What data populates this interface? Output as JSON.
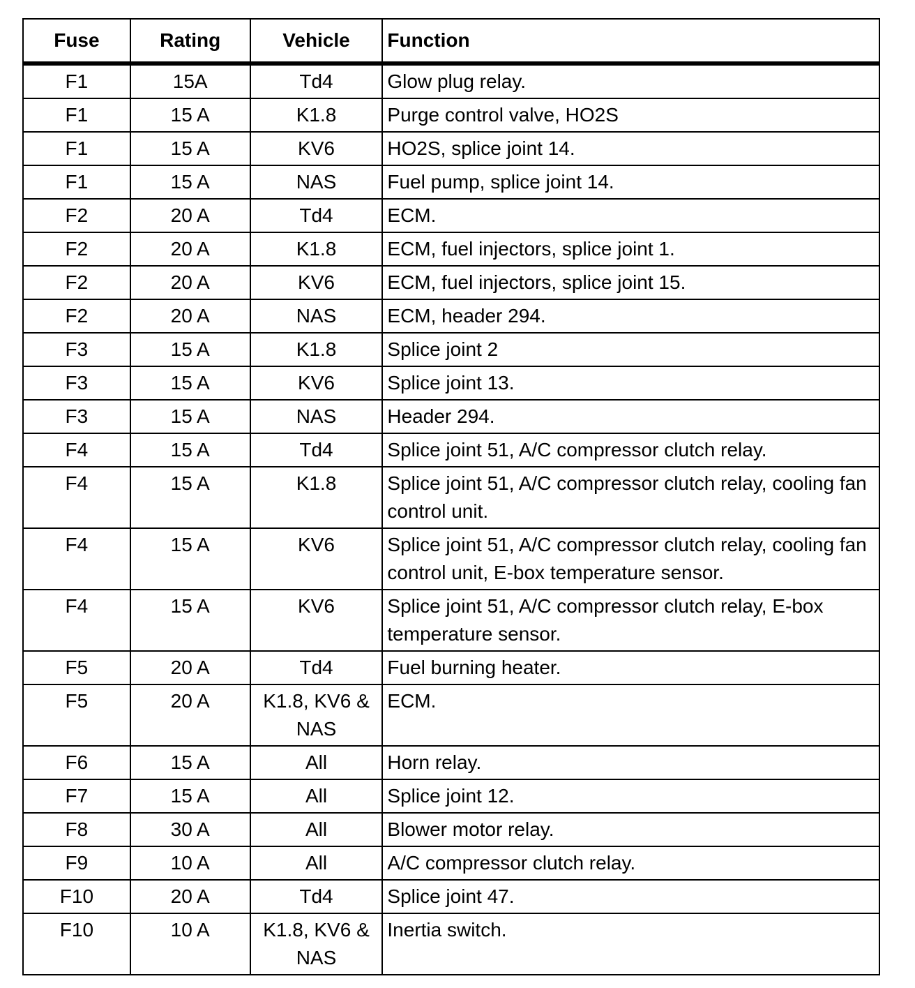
{
  "table": {
    "headers": [
      "Fuse",
      "Rating",
      "Vehicle",
      "Function"
    ],
    "rows": [
      [
        "F1",
        "15A",
        "Td4",
        "Glow plug relay."
      ],
      [
        "F1",
        "15 A",
        "K1.8",
        "Purge control valve, HO2S"
      ],
      [
        "F1",
        "15 A",
        "KV6",
        "HO2S, splice joint 14."
      ],
      [
        "F1",
        "15 A",
        "NAS",
        "Fuel pump, splice joint 14."
      ],
      [
        "F2",
        "20 A",
        "Td4",
        "ECM."
      ],
      [
        "F2",
        "20 A",
        "K1.8",
        "ECM, fuel injectors, splice joint 1."
      ],
      [
        "F2",
        "20 A",
        "KV6",
        "ECM, fuel injectors, splice joint 15."
      ],
      [
        "F2",
        "20 A",
        "NAS",
        "ECM, header 294."
      ],
      [
        "F3",
        "15 A",
        "K1.8",
        "Splice joint 2"
      ],
      [
        "F3",
        "15 A",
        "KV6",
        "Splice joint 13."
      ],
      [
        "F3",
        "15 A",
        "NAS",
        "Header 294."
      ],
      [
        "F4",
        "15 A",
        "Td4",
        "Splice joint 51, A/C compressor clutch relay."
      ],
      [
        "F4",
        "15 A",
        "K1.8",
        "Splice joint 51, A/C compressor clutch relay, cooling fan control unit."
      ],
      [
        "F4",
        "15 A",
        "KV6",
        "Splice joint 51, A/C compressor clutch relay, cooling fan control unit, E-box temperature sensor."
      ],
      [
        "F4",
        "15 A",
        "KV6",
        "Splice joint 51, A/C compressor clutch relay, E-box temperature sensor."
      ],
      [
        "F5",
        "20 A",
        "Td4",
        "Fuel burning heater."
      ],
      [
        "F5",
        "20 A",
        "K1.8, KV6 & NAS",
        "ECM."
      ],
      [
        "F6",
        "15 A",
        "All",
        "Horn relay."
      ],
      [
        "F7",
        "15 A",
        "All",
        "Splice joint 12."
      ],
      [
        "F8",
        "30 A",
        "All",
        "Blower motor relay."
      ],
      [
        "F9",
        "10 A",
        "All",
        "A/C compressor clutch relay."
      ],
      [
        "F10",
        "20 A",
        "Td4",
        "Splice joint 47."
      ],
      [
        "F10",
        "10 A",
        "K1.8, KV6 & NAS",
        "Inertia switch."
      ]
    ]
  }
}
